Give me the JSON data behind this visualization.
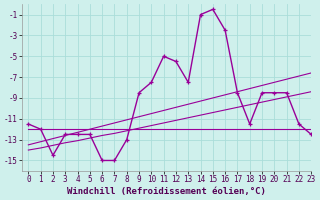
{
  "xlabel": "Windchill (Refroidissement éolien,°C)",
  "x": [
    0,
    1,
    2,
    3,
    4,
    5,
    6,
    7,
    8,
    9,
    10,
    11,
    12,
    13,
    14,
    15,
    16,
    17,
    18,
    19,
    20,
    21,
    22,
    23
  ],
  "y_main": [
    -11.5,
    -12.0,
    -14.5,
    -12.5,
    -12.5,
    -12.5,
    -15.0,
    -15.0,
    -13.0,
    -8.5,
    -7.5,
    -5.0,
    -5.5,
    -7.5,
    -1.0,
    -0.5,
    -2.5,
    -8.5,
    -11.5,
    -8.5,
    -8.5,
    -8.5,
    -11.5,
    -12.5
  ],
  "y_line1": [
    -12.0,
    -12.0,
    -12.0,
    -12.0,
    -12.0,
    -12.0,
    -12.0,
    -12.0,
    -12.0,
    -12.0,
    -12.0,
    -12.0,
    -12.0,
    -12.0,
    -12.0,
    -12.0,
    -12.0,
    -12.0,
    -12.0,
    -12.0,
    -12.0,
    -12.0,
    -12.0,
    -12.0
  ],
  "y_line2": [
    -13.5,
    -13.2,
    -12.9,
    -12.6,
    -12.3,
    -12.0,
    -11.7,
    -11.4,
    -11.1,
    -10.8,
    -10.5,
    -10.2,
    -9.9,
    -9.6,
    -9.3,
    -9.0,
    -8.7,
    -8.4,
    -8.1,
    -7.8,
    -7.5,
    -7.2,
    -6.9,
    -6.6
  ],
  "y_line3": [
    -14.0,
    -13.8,
    -13.55,
    -13.3,
    -13.1,
    -12.85,
    -12.6,
    -12.4,
    -12.15,
    -11.9,
    -11.65,
    -11.4,
    -11.15,
    -10.9,
    -10.65,
    -10.4,
    -10.15,
    -9.9,
    -9.65,
    -9.4,
    -9.15,
    -8.9,
    -8.65,
    -8.4
  ],
  "bg_color": "#cff0ec",
  "grid_color": "#aaddda",
  "line_color": "#990099",
  "tick_fontsize": 5.5,
  "xlabel_fontsize": 6.5,
  "ylim": [
    -16,
    0
  ],
  "yticks": [
    -15,
    -13,
    -11,
    -9,
    -7,
    -5,
    -3,
    -1
  ],
  "xlim": [
    -0.5,
    23
  ]
}
